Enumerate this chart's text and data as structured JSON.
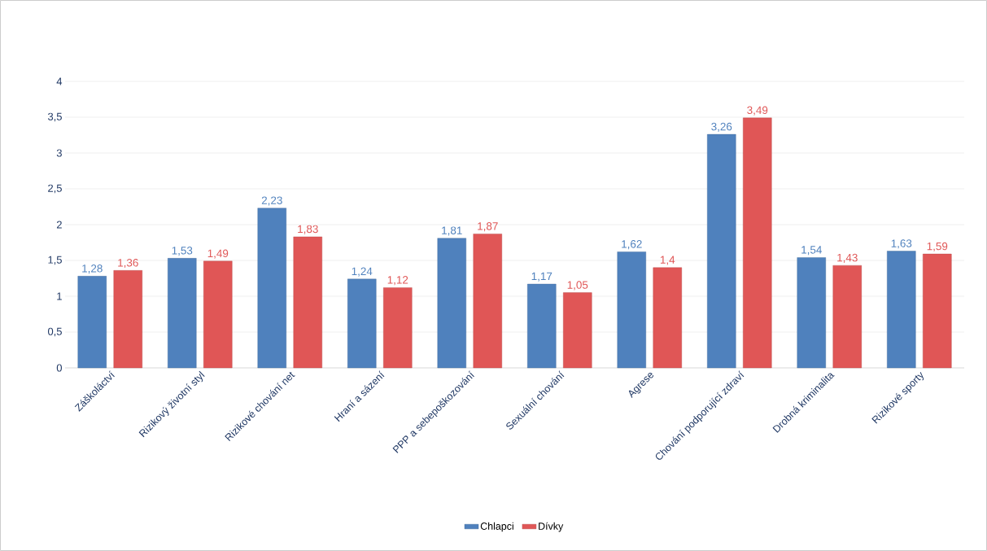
{
  "chart_data": {
    "type": "bar",
    "categories": [
      "Záškoláctví",
      "Rizikový životní styl",
      "Rizikové chování net",
      "Hraní a sázení",
      "PPP a sebepoškozování",
      "Sexuální chování",
      "Agrese",
      "Chování podporující zdraví",
      "Drobná kriminalita",
      "Rizikové sporty"
    ],
    "series": [
      {
        "name": "Chlapci",
        "color": "#4f81bd",
        "values": [
          1.28,
          1.53,
          2.23,
          1.24,
          1.81,
          1.17,
          1.62,
          3.26,
          1.54,
          1.63
        ],
        "value_labels": [
          "1,28",
          "1,53",
          "2,23",
          "1,24",
          "1,81",
          "1,17",
          "1,62",
          "3,26",
          "1,54",
          "1,63"
        ]
      },
      {
        "name": "Dívky",
        "color": "#e05656",
        "values": [
          1.36,
          1.49,
          1.83,
          1.12,
          1.87,
          1.05,
          1.4,
          3.49,
          1.43,
          1.59
        ],
        "value_labels": [
          "1,36",
          "1,49",
          "1,83",
          "1,12",
          "1,87",
          "1,05",
          "1,4",
          "3,49",
          "1,43",
          "1,59"
        ]
      }
    ],
    "ylim": [
      0,
      4
    ],
    "yticks": [
      0,
      {
        "value": 0.5,
        "label": "0,5"
      },
      1,
      {
        "value": 1.5,
        "label": "1,5"
      },
      2,
      {
        "value": 2.5,
        "label": "2,5"
      },
      3,
      {
        "value": 3.5,
        "label": "3,5"
      },
      4
    ],
    "grid": "y",
    "legend": "bottom"
  }
}
